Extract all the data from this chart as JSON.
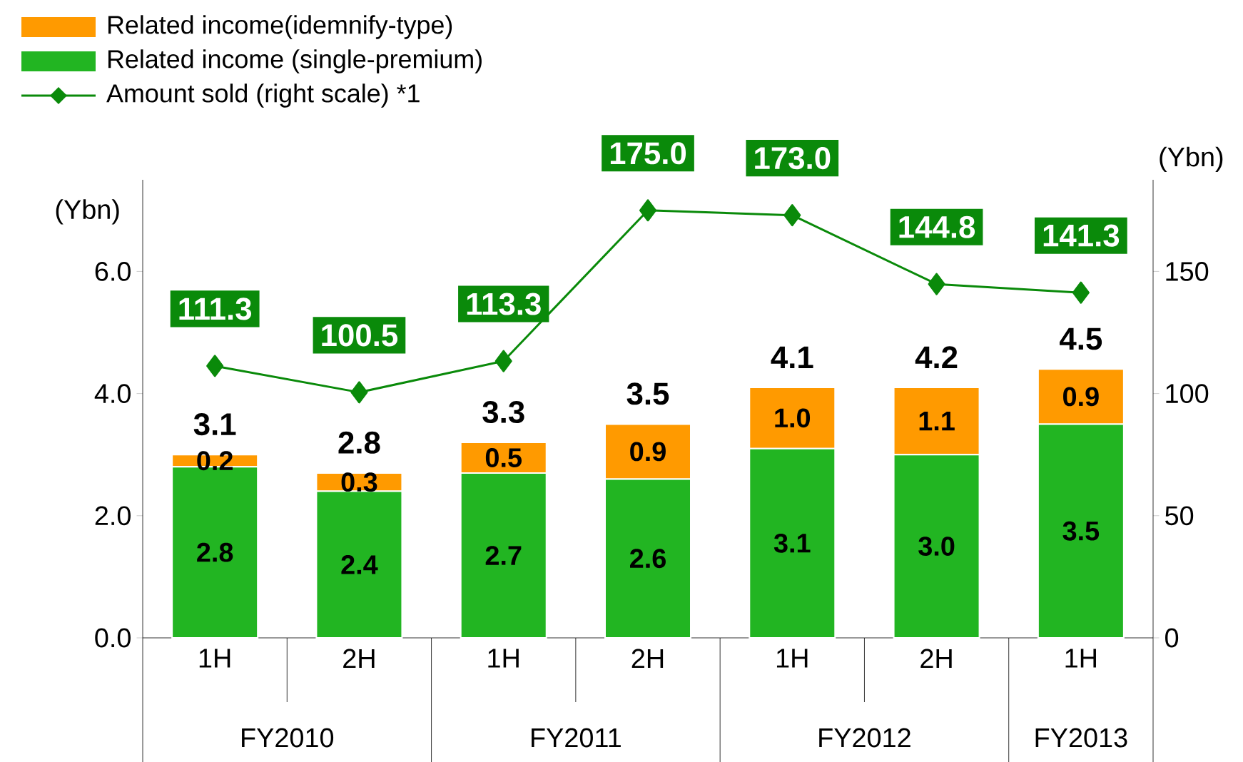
{
  "chart_data": {
    "type": "bar",
    "stacked": true,
    "categories": [
      "1H",
      "2H",
      "1H",
      "2H",
      "1H",
      "2H",
      "1H"
    ],
    "series": [
      {
        "name": "Related income (single-premium)",
        "color": "#22b522",
        "values": [
          2.8,
          2.4,
          2.7,
          2.6,
          3.1,
          3.0,
          3.5
        ],
        "value_labels": [
          "2.8",
          "2.4",
          "2.7",
          "2.6",
          "3.1",
          "3.0",
          "3.5"
        ]
      },
      {
        "name": "Related income(idemnify-type)",
        "color": "#ff9a00",
        "values": [
          0.2,
          0.3,
          0.5,
          0.9,
          1.0,
          1.1,
          0.9
        ],
        "value_labels": [
          "0.2",
          "0.3",
          "0.5",
          "0.9",
          "1.0",
          "1.1",
          "0.9"
        ]
      },
      {
        "name": "Amount sold (right scale) *1",
        "type": "line",
        "axis": "y2",
        "color": "#0a8a0a",
        "marker": "diamond",
        "values": [
          111.3,
          100.5,
          113.3,
          175.0,
          173.0,
          144.8,
          141.3
        ],
        "value_labels": [
          "111.3",
          "100.5",
          "113.3",
          "175.0",
          "173.0",
          "144.8",
          "141.3"
        ]
      }
    ],
    "totals": [
      "3.1",
      "2.8",
      "3.3",
      "3.5",
      "4.1",
      "4.2",
      "4.5"
    ],
    "ylabel": "(Ybn)",
    "y2label": "(Ybn)",
    "ylim": [
      0,
      7.5
    ],
    "yticks": [
      {
        "value": 0,
        "label": "0.0"
      },
      {
        "value": 2,
        "label": "2.0"
      },
      {
        "value": 4,
        "label": "4.0"
      },
      {
        "value": 6,
        "label": "6.0"
      }
    ],
    "y2lim": [
      0,
      187.5
    ],
    "y2ticks": [
      0,
      50,
      100,
      150
    ],
    "legend": "top left",
    "annotations": [
      "FY2010",
      "FY2011",
      "FY2012",
      "FY2013"
    ]
  }
}
